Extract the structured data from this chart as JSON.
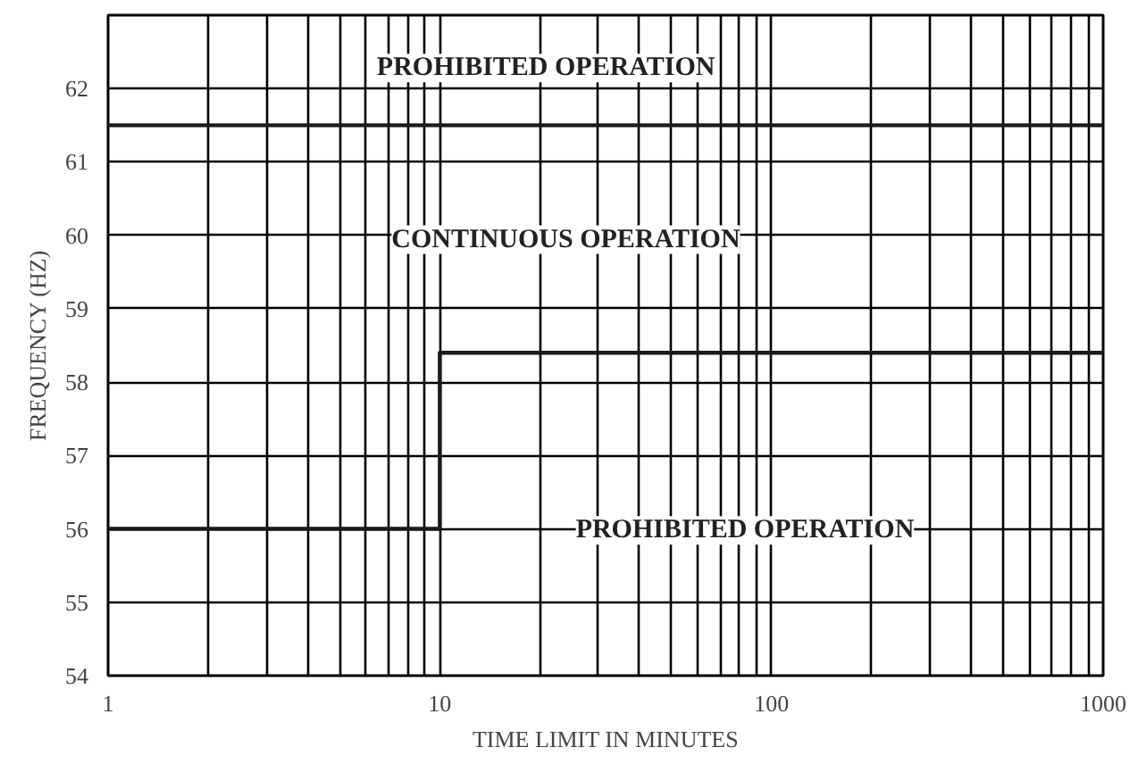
{
  "chart_data": {
    "type": "line",
    "xlabel": "TIME LIMIT IN MINUTES",
    "ylabel": "FREQUENCY (HZ)",
    "log": "x",
    "xlim": [
      1,
      1000
    ],
    "xticks": [
      1,
      10,
      100,
      1000
    ],
    "ylim": [
      54,
      63
    ],
    "yticks": [
      54,
      55,
      56,
      57,
      58,
      59,
      60,
      61,
      62
    ],
    "grid": true,
    "marker": "none",
    "line_style": "solid",
    "series": [
      {
        "color": "#1a1a1a",
        "x": [
          1,
          1000
        ],
        "values": [
          61.5,
          61.5
        ]
      },
      {
        "color": "#1a1a1a",
        "x": [
          1,
          10,
          10,
          1000
        ],
        "values": [
          56,
          56,
          58.4,
          58.4
        ]
      }
    ],
    "annotations": [
      "PROHIBITED OPERATION",
      "CONTINUOUS OPERATION",
      "PROHIBITED OPERATION"
    ]
  }
}
